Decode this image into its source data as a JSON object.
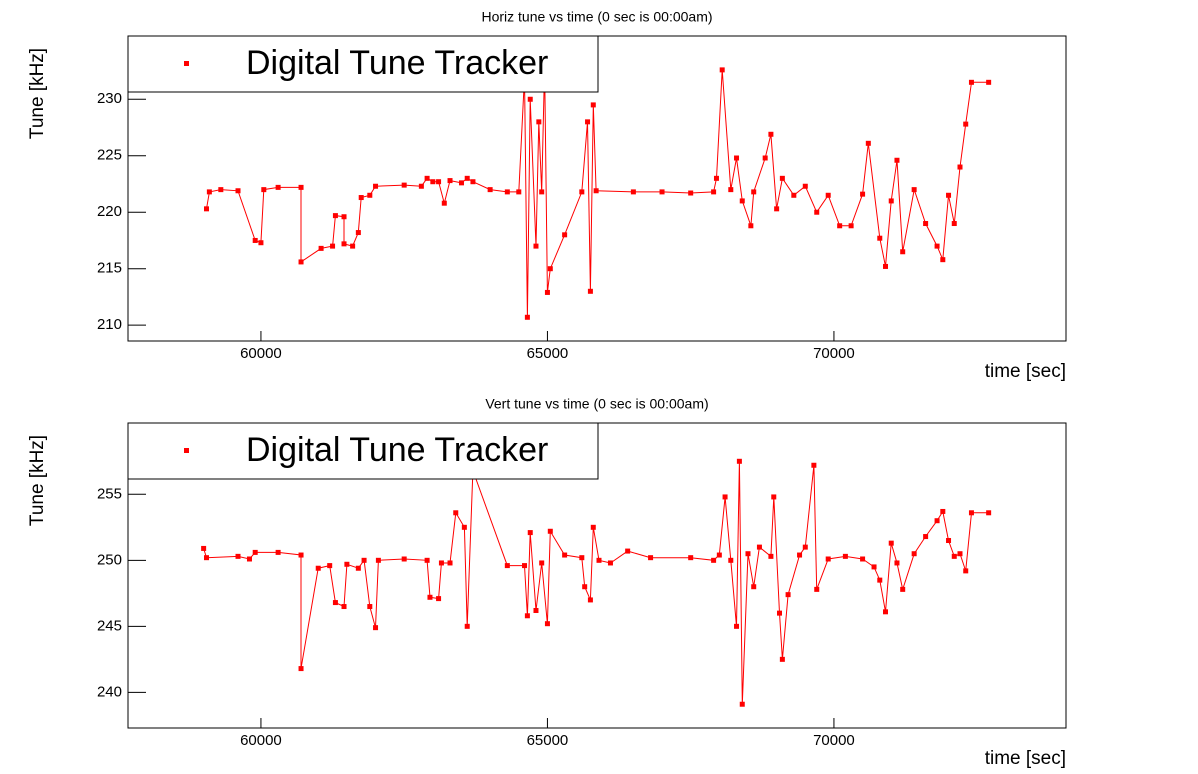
{
  "chart_data": [
    {
      "type": "scatter",
      "title": "Horiz tune vs time (0 sec is 00:00am)",
      "x_label": "time [sec]",
      "y_label": "Tune [kHz]",
      "xlim": [
        57680,
        74050
      ],
      "xticks": [
        60000,
        65000,
        70000
      ],
      "ylim": [
        208.6,
        235.6
      ],
      "yticks": [
        210,
        215,
        220,
        225,
        230
      ],
      "legend": "top-left",
      "series": [
        {
          "name": "Digital Tune Tracker",
          "color": "#ff0000",
          "x": [
            59050,
            59100,
            59300,
            59600,
            59900,
            60000,
            60050,
            60300,
            60700,
            60700,
            61050,
            61250,
            61300,
            61450,
            61450,
            61600,
            61700,
            61750,
            61900,
            62000,
            62500,
            62800,
            62900,
            63000,
            63100,
            63200,
            63300,
            63500,
            63600,
            63700,
            64000,
            64300,
            64500,
            64600,
            64650,
            64700,
            64800,
            64850,
            64900,
            64950,
            65000,
            65050,
            65300,
            65600,
            65700,
            65750,
            65800,
            65850,
            66500,
            67000,
            67500,
            67900,
            67950,
            68050,
            68200,
            68300,
            68400,
            68550,
            68600,
            68800,
            68900,
            69000,
            69100,
            69300,
            69500,
            69700,
            69900,
            70100,
            70300,
            70500,
            70600,
            70800,
            70900,
            71000,
            71100,
            71200,
            71400,
            71600,
            71800,
            71900,
            72000,
            72100,
            72200,
            72300,
            72400,
            72700
          ],
          "values": [
            220.3,
            221.8,
            222,
            221.9,
            217.5,
            217.3,
            222,
            222.2,
            222.2,
            215.6,
            216.8,
            217,
            219.7,
            219.6,
            217.2,
            217,
            218.2,
            221.3,
            221.5,
            222.3,
            222.4,
            222.3,
            223,
            222.7,
            222.7,
            220.8,
            222.8,
            222.6,
            223,
            222.7,
            222,
            221.8,
            221.8,
            232,
            210.7,
            230,
            217,
            228,
            221.8,
            233,
            212.9,
            215,
            218,
            221.8,
            228,
            213,
            229.5,
            221.9,
            221.8,
            221.8,
            221.7,
            221.8,
            223,
            232.6,
            222,
            224.8,
            221,
            218.8,
            221.8,
            224.8,
            226.9,
            220.3,
            223,
            221.5,
            222.3,
            220,
            221.5,
            218.8,
            218.8,
            221.6,
            226.1,
            217.7,
            215.2,
            221,
            224.6,
            216.5,
            222,
            219,
            217,
            215.8,
            221.5,
            219,
            224,
            227.8,
            231.5,
            231.5
          ]
        }
      ]
    },
    {
      "type": "scatter",
      "title": "Vert tune vs time (0 sec is 00:00am)",
      "x_label": "time [sec]",
      "y_label": "Tune [kHz]",
      "xlim": [
        57680,
        74050
      ],
      "xticks": [
        60000,
        65000,
        70000
      ],
      "ylim": [
        237.3,
        260.4
      ],
      "yticks": [
        240,
        245,
        250,
        255
      ],
      "legend": "top-left",
      "series": [
        {
          "name": "Digital Tune Tracker",
          "color": "#ff0000",
          "x": [
            59000,
            59050,
            59600,
            59800,
            59900,
            60300,
            60700,
            60700,
            61000,
            61200,
            61300,
            61450,
            61500,
            61700,
            61800,
            61900,
            62000,
            62050,
            62500,
            62900,
            62950,
            63100,
            63150,
            63300,
            63400,
            63550,
            63600,
            63700,
            64300,
            64600,
            64650,
            64700,
            64800,
            64900,
            65000,
            65050,
            65300,
            65600,
            65650,
            65750,
            65800,
            65900,
            66100,
            66400,
            66800,
            67500,
            67900,
            68000,
            68100,
            68200,
            68300,
            68350,
            68400,
            68500,
            68600,
            68700,
            68900,
            68950,
            69050,
            69100,
            69200,
            69400,
            69500,
            69650,
            69700,
            69900,
            70200,
            70500,
            70700,
            70800,
            70900,
            71000,
            71100,
            71200,
            71400,
            71600,
            71800,
            71900,
            72000,
            72100,
            72200,
            72300,
            72400,
            72700
          ],
          "values": [
            250.9,
            250.2,
            250.3,
            250.1,
            250.6,
            250.6,
            250.4,
            241.8,
            249.4,
            249.6,
            246.8,
            246.5,
            249.7,
            249.4,
            250,
            246.5,
            244.9,
            250,
            250.1,
            250,
            247.2,
            247.1,
            249.8,
            249.8,
            253.6,
            252.5,
            245,
            256.8,
            249.6,
            249.6,
            245.8,
            252.1,
            246.2,
            249.8,
            245.2,
            252.2,
            250.4,
            250.2,
            248,
            247,
            252.5,
            250,
            249.8,
            250.7,
            250.2,
            250.2,
            250,
            250.4,
            254.8,
            250,
            245,
            257.5,
            239.1,
            250.5,
            248,
            251,
            250.3,
            254.8,
            246,
            242.5,
            247.4,
            250.4,
            251,
            257.2,
            247.8,
            250.1,
            250.3,
            250.1,
            249.5,
            248.5,
            246.1,
            251.3,
            249.8,
            247.8,
            250.5,
            251.8,
            253,
            253.7,
            251.5,
            250.3,
            250.5,
            249.2,
            253.6,
            253.6
          ]
        }
      ]
    }
  ]
}
